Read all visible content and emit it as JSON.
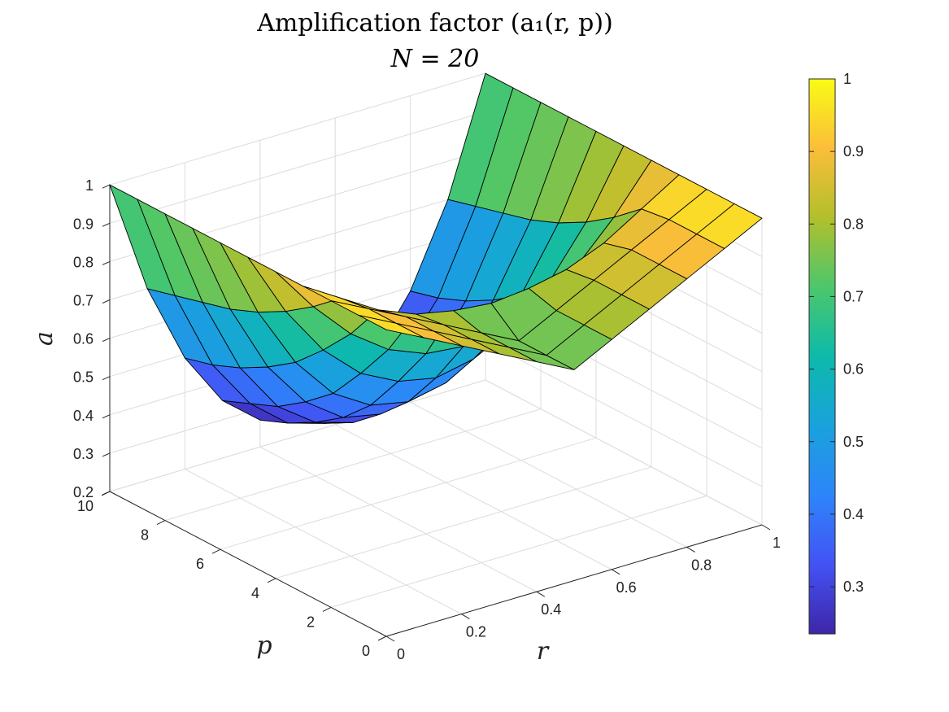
{
  "chart_data": {
    "type": "surface",
    "title": "Amplification factor (a₁(r, p))",
    "subtitle": "N = 20",
    "xlabel": "r",
    "ylabel": "p",
    "zlabel": "a",
    "xlim": [
      0,
      1
    ],
    "ylim": [
      0,
      10
    ],
    "zlim": [
      0.2,
      1
    ],
    "x_ticks": [
      "0",
      "0.2",
      "0.4",
      "0.6",
      "0.8",
      "1"
    ],
    "y_ticks": [
      "0",
      "2",
      "4",
      "6",
      "8",
      "10"
    ],
    "z_ticks": [
      "0.2",
      "0.3",
      "0.4",
      "0.5",
      "0.6",
      "0.7",
      "0.8",
      "0.9",
      "1"
    ],
    "grid": true,
    "colormap": "parula",
    "clim": [
      0.235,
      1
    ],
    "colorbar_ticks": [
      "0.3",
      "0.4",
      "0.5",
      "0.6",
      "0.7",
      "0.8",
      "0.9",
      "1"
    ],
    "colorbar_position": "right",
    "x": [
      0,
      0.1,
      0.2,
      0.3,
      0.4,
      0.5,
      0.6,
      0.7,
      0.8,
      0.9,
      1.0
    ],
    "y": [
      0,
      1,
      2,
      3,
      4,
      5,
      6,
      7,
      8,
      9,
      10
    ],
    "z_note_rows_y_cols_x": true,
    "z": [
      [
        1.0,
        0.95,
        0.9,
        0.85,
        0.8,
        0.75,
        0.8,
        0.85,
        0.9,
        0.95,
        1.0
      ],
      [
        1.0,
        0.95,
        0.9,
        0.85,
        0.8,
        0.75,
        0.8,
        0.85,
        0.9,
        0.95,
        1.0
      ],
      [
        1.0,
        0.95,
        0.9,
        0.85,
        0.8,
        0.75,
        0.8,
        0.85,
        0.9,
        0.95,
        1.0
      ],
      [
        1.0,
        0.94,
        0.88,
        0.84,
        0.82,
        0.81,
        0.82,
        0.84,
        0.88,
        0.94,
        1.0
      ],
      [
        1.0,
        0.88,
        0.78,
        0.71,
        0.67,
        0.66,
        0.67,
        0.71,
        0.78,
        0.88,
        1.0
      ],
      [
        1.0,
        0.83,
        0.7,
        0.61,
        0.56,
        0.54,
        0.56,
        0.61,
        0.7,
        0.83,
        1.0
      ],
      [
        1.0,
        0.79,
        0.63,
        0.52,
        0.46,
        0.44,
        0.46,
        0.52,
        0.63,
        0.79,
        1.0
      ],
      [
        1.0,
        0.76,
        0.58,
        0.46,
        0.39,
        0.37,
        0.39,
        0.46,
        0.58,
        0.76,
        1.0
      ],
      [
        1.0,
        0.74,
        0.54,
        0.41,
        0.34,
        0.31,
        0.34,
        0.41,
        0.54,
        0.74,
        1.0
      ],
      [
        1.0,
        0.72,
        0.51,
        0.38,
        0.3,
        0.27,
        0.3,
        0.38,
        0.51,
        0.72,
        1.0
      ],
      [
        1.0,
        0.7,
        0.49,
        0.35,
        0.27,
        0.24,
        0.27,
        0.35,
        0.49,
        0.7,
        1.0
      ]
    ]
  }
}
